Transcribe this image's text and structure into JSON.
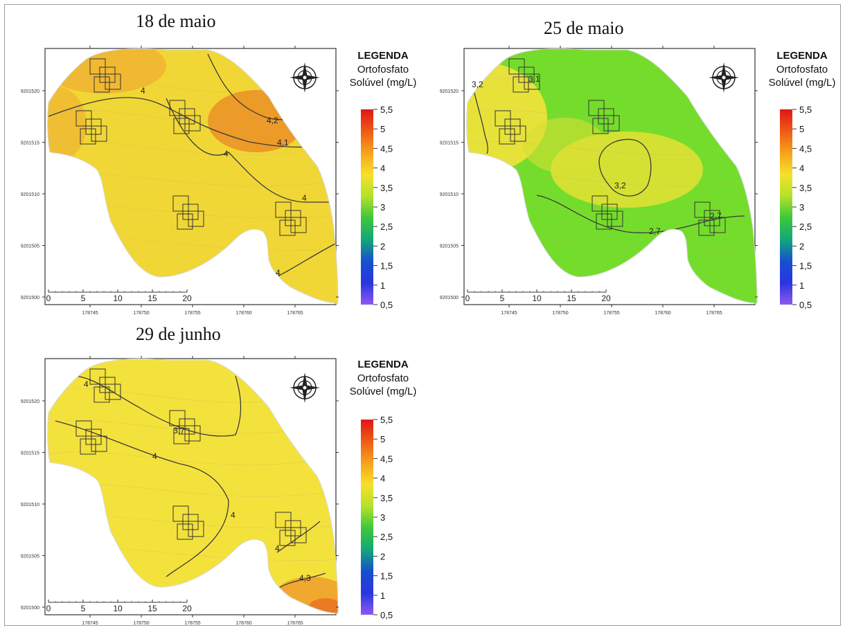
{
  "legend": {
    "title": "LEGENDA",
    "line1": "Ortofosfato",
    "line2": "Solúvel (mg/L)",
    "ticks": [
      "5,5",
      "5",
      "4,5",
      "4",
      "3,5",
      "3",
      "2,5",
      "2",
      "1,5",
      "1",
      "0,5"
    ]
  },
  "axes": {
    "x_ticks": [
      "178745",
      "178750",
      "178755",
      "178760",
      "178765"
    ],
    "y_ticks": [
      "9201520",
      "9201515",
      "9201510",
      "9201505",
      "9201500"
    ]
  },
  "scale_bar": [
    "0",
    "5",
    "10",
    "15",
    "20"
  ],
  "panels": [
    {
      "title": "18 de maio",
      "fill_color": "#f1d735",
      "labels": [
        "4",
        "4,2",
        "4,1",
        "4",
        "4",
        "4"
      ]
    },
    {
      "title": "25 de maio",
      "fill_color": "#74dd2c",
      "labels": [
        "3,2",
        "3,1",
        "3,2",
        "2,7",
        "2,7"
      ]
    },
    {
      "title": "29 de junho",
      "fill_color": "#f4e23c",
      "labels": [
        "4",
        "3,7",
        "4",
        "4",
        "4",
        "4,3"
      ]
    }
  ],
  "colors": {
    "gradient": [
      "#e01616",
      "#f05a16",
      "#f7a21b",
      "#f6e02b",
      "#b4e12a",
      "#3cc83a",
      "#12a77a",
      "#1650d0",
      "#2a35e0",
      "#8c5af0"
    ]
  }
}
